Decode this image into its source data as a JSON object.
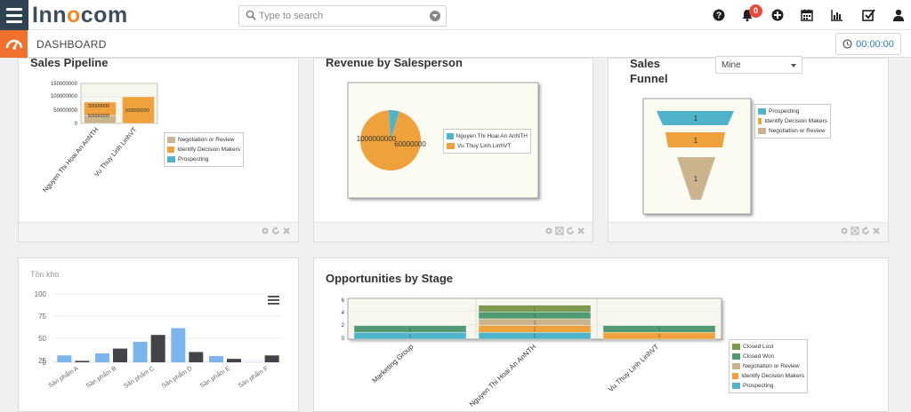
{
  "app": {
    "logo_part1": "Inn",
    "logo_o": "o",
    "logo_part2": "com"
  },
  "search": {
    "placeholder": "Type to search"
  },
  "notifications": {
    "count": "0"
  },
  "header": {
    "title": "DASHBOARD",
    "timer": "00:00:00"
  },
  "sales_pipeline": {
    "title": "Sales Pipeline",
    "chart_data": {
      "type": "bar",
      "stacked": true,
      "categories": [
        "Nguyen Thi Hoai An AnNTH",
        "Vu Thuy Linh LinhVT"
      ],
      "series": [
        {
          "name": "Negotiation or Review",
          "values": [
            30000000,
            0
          ],
          "color": "#c9b48d"
        },
        {
          "name": "Identify Decision Makers",
          "values": [
            50000000,
            100000000
          ],
          "color": "#efa13c"
        },
        {
          "name": "Prospecting",
          "values": [
            0,
            0
          ],
          "color": "#4fb3c9"
        }
      ],
      "data_labels": [
        [
          "30000000",
          "50000000"
        ],
        [
          "100000000"
        ]
      ],
      "yticks": [
        "150000000",
        "100000000",
        "50000000",
        "0"
      ],
      "ylim": [
        0,
        150000000
      ],
      "legend_position": "bottom-right"
    }
  },
  "revenue": {
    "title": "Revenue by Salesperson",
    "chart_data": {
      "type": "pie",
      "labels": [
        "Nguyen Thi Hoai An AnNTH",
        "Vu Thuy Linh LinhVT"
      ],
      "values": [
        60000000,
        1000000000
      ],
      "data_labels": [
        "60000000",
        "1000000000"
      ],
      "colors": [
        "#4fb3c9",
        "#efa13c"
      ],
      "legend_position": "right"
    }
  },
  "sales_funnel": {
    "title_line1": "Sales",
    "title_line2": "Funnel",
    "select_value": "Mine",
    "chart_data": {
      "type": "funnel",
      "stages": [
        "Prospecting",
        "Identify Decision Makers",
        "Negotiation or Review"
      ],
      "values": [
        1,
        1,
        1
      ],
      "colors": [
        "#4fb3c9",
        "#efa13c",
        "#c9b48d"
      ],
      "legend_position": "top-right"
    }
  },
  "inventory": {
    "title": "Tồn kho",
    "chart_data": {
      "type": "bar",
      "categories": [
        "Sản phẩm A",
        "Sản phẩm B",
        "Sản phẩm C",
        "Sản phẩm D",
        "Sản phẩm E",
        "Sản phẩm F"
      ],
      "series": [
        {
          "values": [
            10,
            13,
            30,
            50,
            9,
            0
          ],
          "color": "#7cb5ec"
        },
        {
          "values": [
            2,
            20,
            40,
            15,
            5,
            10
          ],
          "color": "#434348"
        }
      ],
      "yticks": [
        "100",
        "75",
        "50",
        "25",
        "0"
      ],
      "ylim": [
        0,
        100
      ]
    }
  },
  "opportunities": {
    "title": "Opportunities by Stage",
    "chart_data": {
      "type": "bar",
      "stacked": true,
      "categories": [
        "Marketing Group",
        "Nguyen Thi Hoai An AnNTH",
        "Vu Thuy Linh LinhVT"
      ],
      "series": [
        {
          "name": "Prospecting",
          "values": [
            1,
            1,
            0
          ],
          "color": "#4fb3c9"
        },
        {
          "name": "Identify Decision Makers",
          "values": [
            0,
            1,
            1
          ],
          "color": "#efa13c"
        },
        {
          "name": "Negotiation or Review",
          "values": [
            0,
            1,
            0
          ],
          "color": "#c9b48d"
        },
        {
          "name": "Closed Won",
          "values": [
            1,
            1,
            1
          ],
          "color": "#4f9a72"
        },
        {
          "name": "Closed Lost",
          "values": [
            0,
            1,
            0
          ],
          "color": "#7d9a4f"
        }
      ],
      "yticks": [
        "6",
        "4",
        "2",
        "0"
      ],
      "ylim": [
        0,
        6
      ],
      "legend_position": "bottom-right"
    }
  }
}
